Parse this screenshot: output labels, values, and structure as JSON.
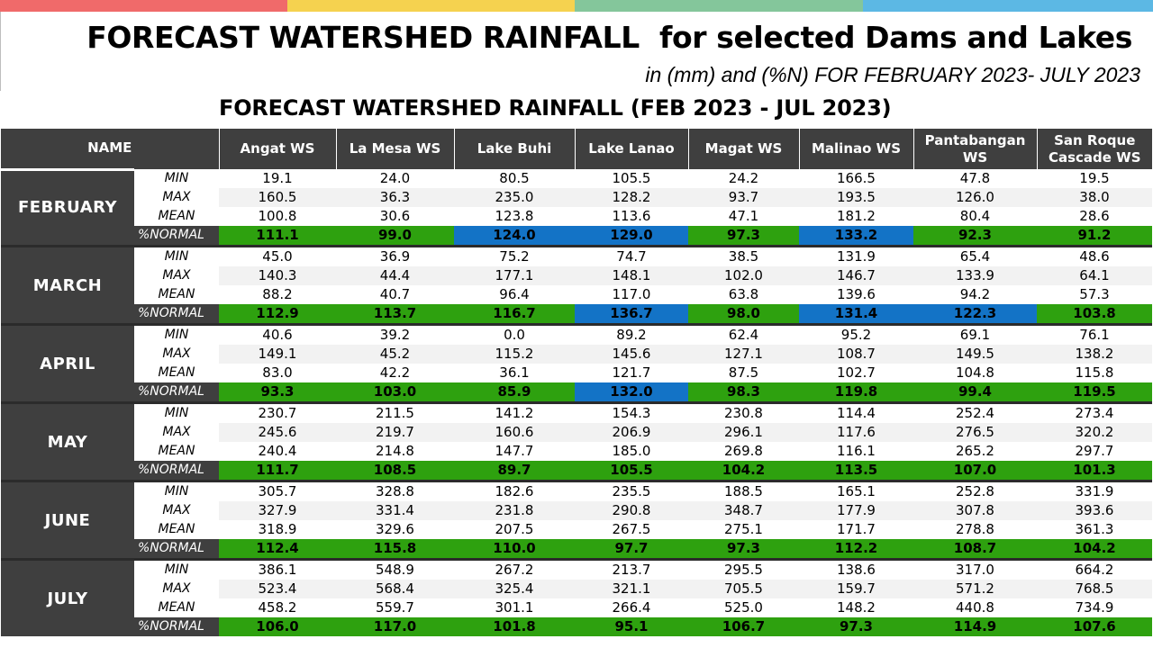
{
  "colors": {
    "topbar": [
      "#f06a6a",
      "#f5d24f",
      "#84c69b",
      "#5cb8e4"
    ],
    "header_bg": "#3f3f3f",
    "normal": "#2ea10f",
    "above_normal": "#1373c6"
  },
  "header": {
    "title": "FORECAST WATERSHED RAINFALL  for selected Dams and Lakes",
    "subtitle": "in (mm) and (%N) FOR FEBRUARY 2023- JULY 2023"
  },
  "table": {
    "title": "FORECAST WATERSHED RAINFALL (FEB 2023 - JUL 2023)",
    "name_header": "NAME",
    "columns": [
      "Angat WS",
      "La Mesa WS",
      "Lake Buhi",
      "Lake Lanao",
      "Magat WS",
      "Malinao WS",
      "Pantabangan WS",
      "San Roque Cascade WS"
    ],
    "row_labels": [
      "MIN",
      "MAX",
      "MEAN",
      "%NORMAL"
    ],
    "months": [
      {
        "name": "FEBRUARY",
        "min": [
          "19.1",
          "24.0",
          "80.5",
          "105.5",
          "24.2",
          "166.5",
          "47.8",
          "19.5"
        ],
        "max": [
          "160.5",
          "36.3",
          "235.0",
          "128.2",
          "93.7",
          "193.5",
          "126.0",
          "38.0"
        ],
        "mean": [
          "100.8",
          "30.6",
          "123.8",
          "113.6",
          "47.1",
          "181.2",
          "80.4",
          "28.6"
        ],
        "normal": [
          "111.1",
          "99.0",
          "124.0",
          "129.0",
          "97.3",
          "133.2",
          "92.3",
          "91.2"
        ],
        "normal_status": [
          "normal",
          "normal",
          "above_normal",
          "above_normal",
          "normal",
          "above_normal",
          "normal",
          "normal"
        ]
      },
      {
        "name": "MARCH",
        "min": [
          "45.0",
          "36.9",
          "75.2",
          "74.7",
          "38.5",
          "131.9",
          "65.4",
          "48.6"
        ],
        "max": [
          "140.3",
          "44.4",
          "177.1",
          "148.1",
          "102.0",
          "146.7",
          "133.9",
          "64.1"
        ],
        "mean": [
          "88.2",
          "40.7",
          "96.4",
          "117.0",
          "63.8",
          "139.6",
          "94.2",
          "57.3"
        ],
        "normal": [
          "112.9",
          "113.7",
          "116.7",
          "136.7",
          "98.0",
          "131.4",
          "122.3",
          "103.8"
        ],
        "normal_status": [
          "normal",
          "normal",
          "normal",
          "above_normal",
          "normal",
          "above_normal",
          "above_normal",
          "normal"
        ]
      },
      {
        "name": "APRIL",
        "min": [
          "40.6",
          "39.2",
          "0.0",
          "89.2",
          "62.4",
          "95.2",
          "69.1",
          "76.1"
        ],
        "max": [
          "149.1",
          "45.2",
          "115.2",
          "145.6",
          "127.1",
          "108.7",
          "149.5",
          "138.2"
        ],
        "mean": [
          "83.0",
          "42.2",
          "36.1",
          "121.7",
          "87.5",
          "102.7",
          "104.8",
          "115.8"
        ],
        "normal": [
          "93.3",
          "103.0",
          "85.9",
          "132.0",
          "98.3",
          "119.8",
          "99.4",
          "119.5"
        ],
        "normal_status": [
          "normal",
          "normal",
          "normal",
          "above_normal",
          "normal",
          "normal",
          "normal",
          "normal"
        ]
      },
      {
        "name": "MAY",
        "min": [
          "230.7",
          "211.5",
          "141.2",
          "154.3",
          "230.8",
          "114.4",
          "252.4",
          "273.4"
        ],
        "max": [
          "245.6",
          "219.7",
          "160.6",
          "206.9",
          "296.1",
          "117.6",
          "276.5",
          "320.2"
        ],
        "mean": [
          "240.4",
          "214.8",
          "147.7",
          "185.0",
          "269.8",
          "116.1",
          "265.2",
          "297.7"
        ],
        "normal": [
          "111.7",
          "108.5",
          "89.7",
          "105.5",
          "104.2",
          "113.5",
          "107.0",
          "101.3"
        ],
        "normal_status": [
          "normal",
          "normal",
          "normal",
          "normal",
          "normal",
          "normal",
          "normal",
          "normal"
        ]
      },
      {
        "name": "JUNE",
        "min": [
          "305.7",
          "328.8",
          "182.6",
          "235.5",
          "188.5",
          "165.1",
          "252.8",
          "331.9"
        ],
        "max": [
          "327.9",
          "331.4",
          "231.8",
          "290.8",
          "348.7",
          "177.9",
          "307.8",
          "393.6"
        ],
        "mean": [
          "318.9",
          "329.6",
          "207.5",
          "267.5",
          "275.1",
          "171.7",
          "278.8",
          "361.3"
        ],
        "normal": [
          "112.4",
          "115.8",
          "110.0",
          "97.7",
          "97.3",
          "112.2",
          "108.7",
          "104.2"
        ],
        "normal_status": [
          "normal",
          "normal",
          "normal",
          "normal",
          "normal",
          "normal",
          "normal",
          "normal"
        ]
      },
      {
        "name": "JULY",
        "min": [
          "386.1",
          "548.9",
          "267.2",
          "213.7",
          "295.5",
          "138.6",
          "317.0",
          "664.2"
        ],
        "max": [
          "523.4",
          "568.4",
          "325.4",
          "321.1",
          "705.5",
          "159.7",
          "571.2",
          "768.5"
        ],
        "mean": [
          "458.2",
          "559.7",
          "301.1",
          "266.4",
          "525.0",
          "148.2",
          "440.8",
          "734.9"
        ],
        "normal": [
          "106.0",
          "117.0",
          "101.8",
          "95.1",
          "106.7",
          "97.3",
          "114.9",
          "107.6"
        ],
        "normal_status": [
          "normal",
          "normal",
          "normal",
          "normal",
          "normal",
          "normal",
          "normal",
          "normal"
        ]
      }
    ]
  }
}
